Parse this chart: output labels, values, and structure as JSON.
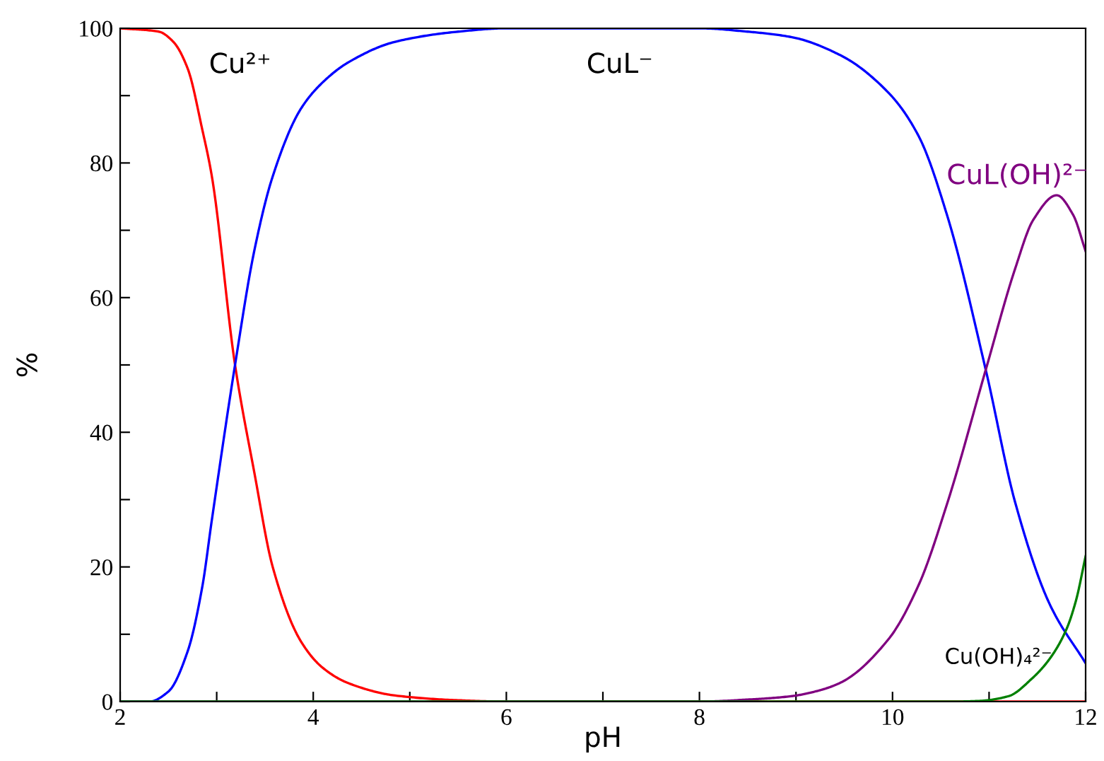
{
  "chart_data": {
    "type": "line",
    "xlabel": "pH",
    "ylabel": "%",
    "xlim": [
      2,
      12
    ],
    "ylim": [
      0,
      100
    ],
    "xticks": [
      2,
      {
        "value": 3,
        "label": null
      },
      4,
      {
        "value": 5,
        "label": null
      },
      6,
      {
        "value": 7,
        "label": null
      },
      8,
      {
        "value": 9,
        "label": null
      },
      10,
      {
        "value": 11,
        "label": null
      },
      12
    ],
    "yticks": [
      0,
      {
        "value": 10,
        "label": null
      },
      20,
      {
        "value": 30,
        "label": null
      },
      40,
      {
        "value": 50,
        "label": null
      },
      60,
      {
        "value": 70,
        "label": null
      },
      80,
      {
        "value": 90,
        "label": null
      },
      100
    ],
    "grid": false,
    "legend": false,
    "marker": "none",
    "line_style": "solid",
    "series": [
      {
        "name": "Cu²⁺",
        "color": "#ff0000",
        "x": [
          2,
          2.4,
          2.55,
          2.7,
          2.85,
          2.95,
          3.19,
          3.39,
          3.58,
          3.87,
          4.1,
          4.37,
          4.85,
          5.5,
          6,
          12
        ],
        "values": [
          100,
          99.5,
          98,
          94,
          85,
          78,
          50,
          34,
          20,
          9,
          5,
          2.7,
          0.9,
          0.2,
          0,
          0
        ]
      },
      {
        "name": "CuL⁻",
        "color": "#0000ff",
        "x": [
          2,
          2.3,
          2.5,
          2.7,
          2.85,
          2.95,
          3.19,
          3.39,
          3.58,
          3.87,
          4.1,
          4.37,
          4.85,
          5.5,
          6,
          8,
          8.5,
          8.95,
          9.46,
          9.96,
          10.27,
          10.57,
          10.97,
          11.27,
          11.63,
          12
        ],
        "values": [
          0,
          0,
          1.5,
          7.5,
          17,
          27,
          50,
          67,
          78,
          88,
          92,
          95,
          98,
          99.5,
          100,
          100,
          99.5,
          98.7,
          96,
          90.4,
          84,
          72,
          49,
          29.6,
          14.4,
          5.7
        ]
      },
      {
        "name": "CuL(OH)²⁻",
        "color": "#800080",
        "x": [
          2,
          8,
          8.5,
          8.95,
          9.2,
          9.46,
          9.96,
          10.27,
          10.57,
          10.97,
          11.27,
          11.46,
          11.7,
          11.87,
          12
        ],
        "values": [
          0,
          0,
          0.3,
          0.8,
          1.5,
          2.8,
          9.3,
          17.3,
          29.6,
          49.5,
          64.3,
          71.6,
          75.2,
          72.3,
          66.9
        ]
      },
      {
        "name": "Cu(OH)₄²⁻",
        "color": "#008000",
        "x": [
          2,
          10.6,
          10.9,
          11.2,
          11.45,
          11.63,
          11.8,
          11.9,
          12
        ],
        "values": [
          0,
          0,
          0.1,
          0.8,
          3.5,
          6.4,
          10.7,
          15,
          21.6
        ]
      }
    ]
  }
}
